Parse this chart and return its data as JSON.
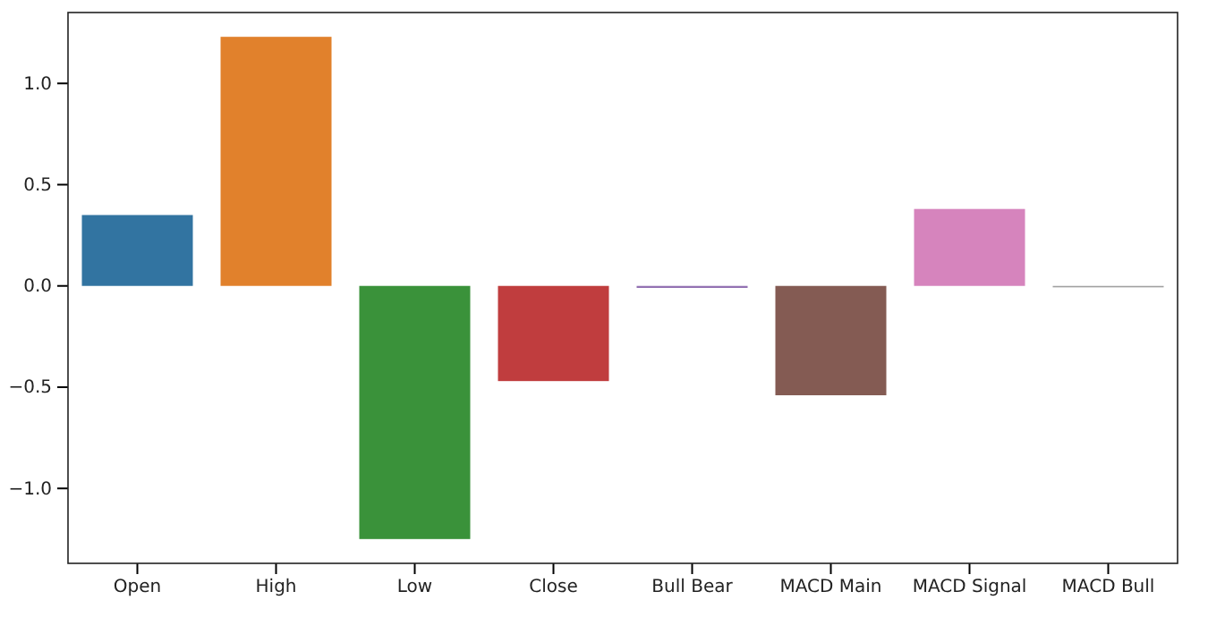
{
  "chart_data": {
    "type": "bar",
    "categories": [
      "Open",
      "High",
      "Low",
      "Close",
      "Bull Bear",
      "MACD Main",
      "MACD Signal",
      "MACD Bull"
    ],
    "values": [
      0.35,
      1.23,
      -1.25,
      -0.47,
      -0.01,
      -0.54,
      0.38,
      -0.005
    ],
    "colors": [
      "#3274a1",
      "#e1812c",
      "#3a923a",
      "#c03d3e",
      "#9372b2",
      "#845b53",
      "#d684bd",
      "#a0a0a0"
    ],
    "ylim": [
      -1.37,
      1.35
    ],
    "yticks": [
      {
        "value": -1.0,
        "label": "−1.0"
      },
      {
        "value": -0.5,
        "label": "−0.5"
      },
      {
        "value": 0,
        "label": "0.0"
      },
      {
        "value": 0.5,
        "label": "0.5"
      },
      {
        "value": 1.0,
        "label": "1.0"
      }
    ]
  }
}
